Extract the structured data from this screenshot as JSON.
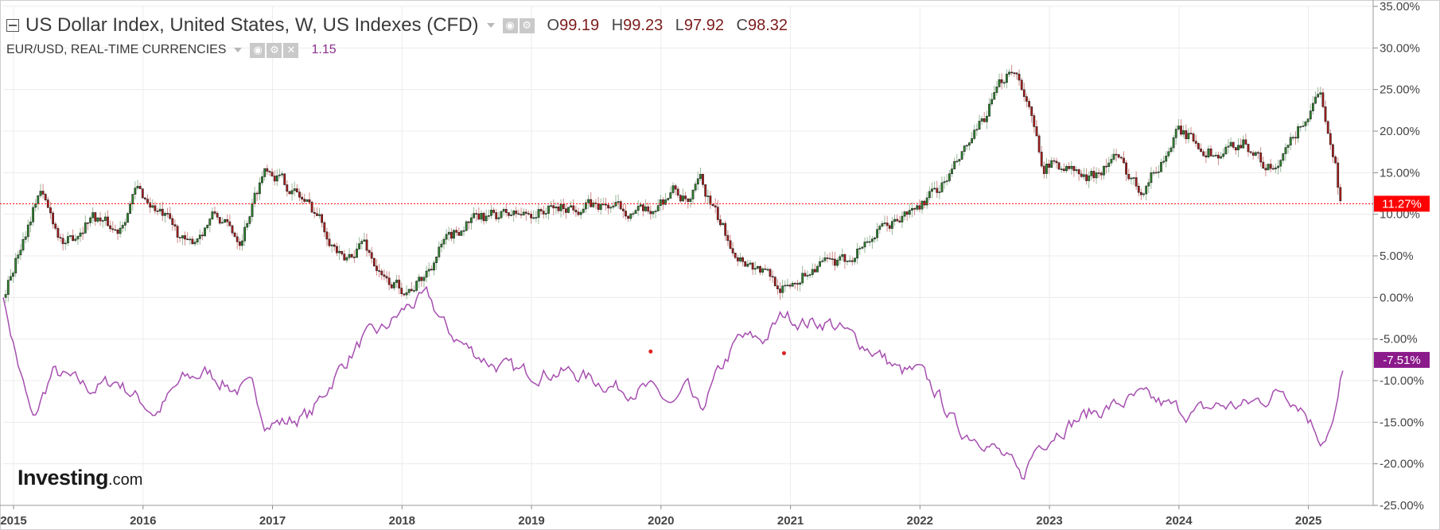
{
  "header": {
    "title": "US Dollar Index, United States, W, US Indexes (CFD)",
    "ohlc": [
      {
        "key": "O",
        "value": "99.19"
      },
      {
        "key": "H",
        "value": "99.23"
      },
      {
        "key": "L",
        "value": "97.92"
      },
      {
        "key": "C",
        "value": "98.32"
      }
    ],
    "compare_title": "EUR/USD, REAL-TIME CURRENCIES",
    "compare_value": "1.15"
  },
  "logo": {
    "bold": "Investing",
    "suffix": ".com"
  },
  "colors": {
    "up": "#2e8b2e",
    "down": "#b31b1b",
    "compare": "#a64fb0",
    "last_price_badge": "#ff0000",
    "compare_badge": "#8b1a8b",
    "grid": "#ececec"
  },
  "chart_data": {
    "type": "line",
    "title": "US Dollar Index, United States, W, US Indexes (CFD)",
    "ylabel": "",
    "y_unit": "%",
    "ylim": [
      -25,
      35
    ],
    "yticks": [
      "35.00%",
      "30.00%",
      "25.00%",
      "20.00%",
      "15.00%",
      "10.00%",
      "5.00%",
      "0.00%",
      "-5.00%",
      "-10.00%",
      "-15.00%",
      "-20.00%",
      "-25.00%"
    ],
    "xticks": [
      "2015",
      "2016",
      "2017",
      "2018",
      "2019",
      "2020",
      "2021",
      "2022",
      "2023",
      "2024",
      "2025"
    ],
    "grid": true,
    "series": [
      {
        "name": "US Dollar Index, United States, W, US Indexes (CFD)",
        "style": "candlestick",
        "last_label": "11.27%",
        "x": [
          2014.92,
          2015.2,
          2015.4,
          2015.6,
          2015.8,
          2015.95,
          2016.2,
          2016.35,
          2016.55,
          2016.75,
          2016.95,
          2017.15,
          2017.35,
          2017.55,
          2017.7,
          2017.85,
          2018.05,
          2018.15,
          2018.3,
          2018.5,
          2018.75,
          2018.95,
          2019.3,
          2019.6,
          2019.9,
          2020.1,
          2020.22,
          2020.3,
          2020.45,
          2020.6,
          2020.8,
          2020.95,
          2021.2,
          2021.4,
          2021.6,
          2021.9,
          2022.0,
          2022.2,
          2022.45,
          2022.7,
          2022.78,
          2022.95,
          2023.1,
          2023.3,
          2023.5,
          2023.7,
          2023.85,
          2024.0,
          2024.3,
          2024.5,
          2024.65,
          2024.75,
          2024.95,
          2025.1,
          2025.2,
          2025.25
        ],
        "y": [
          0,
          13,
          6,
          10,
          8,
          13,
          9,
          6,
          10,
          7,
          16,
          13,
          10,
          4,
          7,
          2,
          1,
          2,
          6,
          9,
          10,
          10,
          11,
          11,
          10,
          13,
          11,
          14,
          9,
          5,
          3,
          1,
          4,
          4,
          7,
          10,
          11,
          14,
          20,
          28,
          26,
          16,
          16,
          14,
          17,
          13,
          16,
          20,
          17,
          19,
          16,
          15,
          21,
          24,
          17,
          11.27
        ]
      },
      {
        "name": "EUR/USD, REAL-TIME CURRENCIES",
        "style": "line",
        "last_label": "-7.51%",
        "x": [
          2014.92,
          2015.05,
          2015.15,
          2015.3,
          2015.45,
          2015.6,
          2015.8,
          2015.95,
          2016.1,
          2016.3,
          2016.5,
          2016.7,
          2016.85,
          2016.95,
          2017.1,
          2017.3,
          2017.5,
          2017.7,
          2017.85,
          2018.05,
          2018.2,
          2018.35,
          2018.5,
          2018.7,
          2018.9,
          2019.1,
          2019.3,
          2019.5,
          2019.7,
          2019.9,
          2020.1,
          2020.2,
          2020.3,
          2020.45,
          2020.6,
          2020.8,
          2020.95,
          2021.1,
          2021.3,
          2021.5,
          2021.7,
          2021.85,
          2022.0,
          2022.15,
          2022.3,
          2022.5,
          2022.7,
          2022.78,
          2022.9,
          2023.05,
          2023.3,
          2023.5,
          2023.7,
          2023.9,
          2024.1,
          2024.3,
          2024.5,
          2024.7,
          2024.8,
          2024.95,
          2025.1,
          2025.2,
          2025.28
        ],
        "y": [
          0,
          -9,
          -15,
          -9,
          -10,
          -11,
          -10,
          -12,
          -14,
          -10,
          -9,
          -11,
          -11,
          -15,
          -15,
          -14,
          -9,
          -5,
          -4,
          -1,
          0,
          -4,
          -6,
          -8,
          -9,
          -9,
          -9,
          -10,
          -11,
          -11,
          -13,
          -11,
          -14,
          -9,
          -5,
          -5,
          -2,
          -3,
          -3,
          -5,
          -7,
          -9,
          -9,
          -12,
          -16,
          -17,
          -20,
          -22,
          -18,
          -16,
          -14,
          -13,
          -12,
          -13,
          -14,
          -13,
          -13,
          -12,
          -11,
          -13,
          -17,
          -15,
          -7.51
        ]
      }
    ],
    "markers": [
      {
        "x": 2019.92,
        "y": -6.5
      },
      {
        "x": 2020.95,
        "y": -6.7
      }
    ]
  }
}
